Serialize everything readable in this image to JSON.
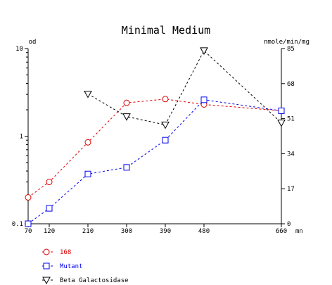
{
  "chart_data": {
    "type": "line",
    "title": "Minimal Medium",
    "ylabel_left": "od",
    "ylabel_right": "nmole/min/mg",
    "xlabel_unit": "mn",
    "y_left_scale": "log",
    "ylim_left": [
      0.1,
      10
    ],
    "ylim_right": [
      0,
      85
    ],
    "grid": false,
    "legend_position": "bottom-left",
    "x_ticks": [
      70,
      120,
      210,
      300,
      390,
      480,
      660
    ],
    "y_left_ticks": [
      {
        "value": 0.1,
        "label": "0.1"
      },
      {
        "value": 1,
        "label": "1"
      },
      {
        "value": 10,
        "label": "10"
      }
    ],
    "y_right_ticks": [
      0,
      17,
      34,
      51,
      68,
      85
    ],
    "series": [
      {
        "name": "168",
        "axis": "left",
        "marker": "circle",
        "color": "#e00000",
        "x": [
          70,
          120,
          210,
          300,
          390,
          480,
          660
        ],
        "y": [
          0.2,
          0.3,
          0.85,
          2.4,
          2.65,
          2.3,
          1.95
        ]
      },
      {
        "name": "Mutant",
        "axis": "left",
        "marker": "square",
        "color": "#0000ee",
        "x": [
          70,
          120,
          210,
          300,
          390,
          480,
          660
        ],
        "y": [
          0.1,
          0.15,
          0.37,
          0.44,
          0.9,
          2.6,
          1.95
        ]
      },
      {
        "name": "Beta Galactosidase",
        "axis": "right",
        "marker": "triangle-down",
        "color": "#000000",
        "x": [
          210,
          300,
          390,
          480,
          660
        ],
        "y": [
          63,
          52,
          48,
          84,
          49
        ]
      }
    ]
  }
}
